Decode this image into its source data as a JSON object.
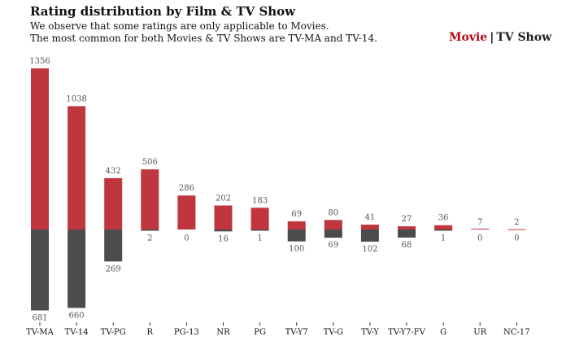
{
  "header": {
    "title": "Rating distribution by Film & TV Show",
    "subtitle_line1": "We observe that some ratings are only applicable to Movies.",
    "subtitle_line2": "The most common for both Movies & TV Shows are TV-MA and TV-14."
  },
  "legend": {
    "movie_label": "Movie",
    "separator": "|",
    "tv_label": "TV Show",
    "movie_color": "#b20710",
    "tv_color": "#221f1f"
  },
  "colors": {
    "movie_bar": "#c0363e",
    "tv_bar": "#4d4c4d"
  },
  "chart_data": {
    "type": "bar",
    "title": "Rating distribution by Film & TV Show",
    "subtitle": "We observe that some ratings are only applicable to Movies. The most common for both Movies & TV Shows are TV-MA and TV-14.",
    "xlabel": "",
    "ylabel": "",
    "layout": "diverging (Movies above baseline, TV Shows below)",
    "grid": false,
    "legend_position": "top-right",
    "categories": [
      "TV-MA",
      "TV-14",
      "TV-PG",
      "R",
      "PG-13",
      "NR",
      "PG",
      "TV-Y7",
      "TV-G",
      "TV-Y",
      "TV-Y7-FV",
      "G",
      "UR",
      "NC-17"
    ],
    "series": [
      {
        "name": "Movie",
        "values": [
          1356,
          1038,
          432,
          506,
          286,
          202,
          183,
          69,
          80,
          41,
          27,
          36,
          7,
          2
        ]
      },
      {
        "name": "TV Show",
        "values": [
          681,
          660,
          269,
          2,
          0,
          16,
          1,
          100,
          69,
          102,
          68,
          1,
          0,
          0
        ]
      }
    ]
  }
}
